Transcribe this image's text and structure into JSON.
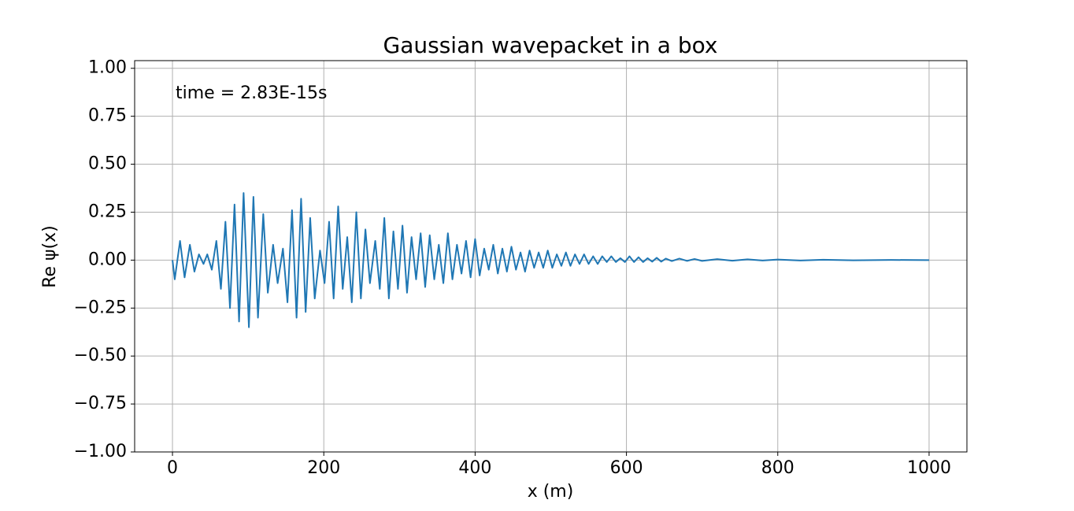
{
  "chart_data": {
    "type": "line",
    "title": "Gaussian wavepacket in a box",
    "xlabel": "x (m)",
    "ylabel": "Re ψ(x)",
    "annotation": "time = 2.83E-15s",
    "color": "#1f77b4",
    "grid": true,
    "xlim": [
      -50,
      1050
    ],
    "ylim": [
      -1,
      1.04
    ],
    "xticks": [
      0,
      200,
      400,
      600,
      800,
      1000
    ],
    "yticks": [
      {
        "value": -1,
        "label": "−1.00"
      },
      {
        "value": -0.75,
        "label": "−0.75"
      },
      {
        "value": -0.5,
        "label": "−0.50"
      },
      {
        "value": -0.25,
        "label": "−0.25"
      },
      {
        "value": 0,
        "label": "0.00"
      },
      {
        "value": 0.25,
        "label": "0.25"
      },
      {
        "value": 0.5,
        "label": "0.50"
      },
      {
        "value": 0.75,
        "label": "0.75"
      },
      {
        "value": 1,
        "label": "1.00"
      }
    ],
    "x": [
      0,
      3,
      10,
      16,
      23,
      29,
      35,
      41,
      46,
      52,
      58,
      64,
      70,
      76,
      82,
      88,
      94,
      101,
      107,
      113,
      120,
      126,
      133,
      139,
      146,
      152,
      158,
      164,
      170,
      176,
      182,
      188,
      195,
      201,
      207,
      213,
      219,
      225,
      231,
      237,
      243,
      249,
      255,
      261,
      268,
      274,
      280,
      286,
      292,
      298,
      304,
      310,
      316,
      322,
      328,
      334,
      340,
      346,
      352,
      358,
      364,
      370,
      376,
      382,
      388,
      394,
      400,
      406,
      412,
      418,
      424,
      430,
      436,
      442,
      448,
      454,
      460,
      466,
      472,
      478,
      484,
      490,
      496,
      502,
      508,
      514,
      520,
      526,
      532,
      538,
      544,
      550,
      556,
      562,
      568,
      574,
      580,
      586,
      592,
      598,
      604,
      610,
      616,
      622,
      628,
      634,
      640,
      646,
      652,
      660,
      670,
      680,
      690,
      700,
      720,
      740,
      760,
      780,
      800,
      830,
      860,
      900,
      950,
      1000
    ],
    "values": [
      0,
      -0.1,
      0.1,
      -0.09,
      0.08,
      -0.06,
      0.03,
      -0.02,
      0.03,
      -0.05,
      0.1,
      -0.15,
      0.2,
      -0.25,
      0.29,
      -0.32,
      0.35,
      -0.35,
      0.33,
      -0.3,
      0.24,
      -0.17,
      0.08,
      -0.12,
      0.06,
      -0.22,
      0.26,
      -0.3,
      0.32,
      -0.27,
      0.22,
      -0.2,
      0.05,
      -0.12,
      0.2,
      -0.2,
      0.28,
      -0.15,
      0.12,
      -0.22,
      0.25,
      -0.2,
      0.16,
      -0.12,
      0.1,
      -0.15,
      0.22,
      -0.2,
      0.15,
      -0.15,
      0.18,
      -0.17,
      0.12,
      -0.1,
      0.14,
      -0.14,
      0.13,
      -0.1,
      0.08,
      -0.12,
      0.14,
      -0.1,
      0.08,
      -0.07,
      0.1,
      -0.09,
      0.11,
      -0.08,
      0.06,
      -0.05,
      0.08,
      -0.07,
      0.06,
      -0.06,
      0.07,
      -0.05,
      0.04,
      -0.06,
      0.05,
      -0.04,
      0.04,
      -0.04,
      0.05,
      -0.04,
      0.03,
      -0.03,
      0.04,
      -0.03,
      0.03,
      -0.02,
      0.03,
      -0.02,
      0.02,
      -0.02,
      0.02,
      -0.01,
      0.02,
      -0.01,
      0.01,
      -0.01,
      0.02,
      -0.01,
      0.015,
      -0.01,
      0.01,
      -0.008,
      0.012,
      -0.008,
      0.008,
      -0.005,
      0.008,
      -0.004,
      0.006,
      -0.004,
      0.005,
      -0.003,
      0.004,
      -0.002,
      0.003,
      -0.002,
      0.002,
      -0.001,
      0.001,
      0
    ]
  }
}
